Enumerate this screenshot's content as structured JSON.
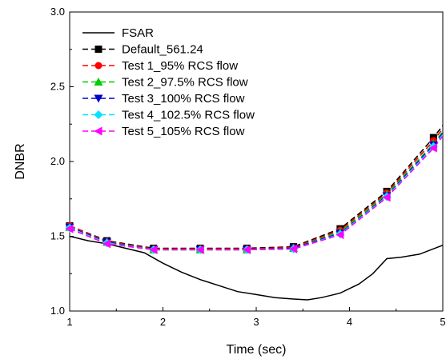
{
  "chart_data": {
    "type": "line",
    "xlabel": "Time (sec)",
    "ylabel": "DNBR",
    "xlim": [
      1,
      5
    ],
    "ylim": [
      1.0,
      3.0
    ],
    "xticks": [
      "1",
      "2",
      "3",
      "4",
      "5"
    ],
    "yticks": [
      "1.0",
      "1.5",
      "2.0",
      "2.5",
      "3.0"
    ],
    "grid": false,
    "legend_position": "top-left",
    "series": [
      {
        "name": "FSAR",
        "color": "#000000",
        "style": "solid",
        "marker": "none",
        "x": [
          1.0,
          1.2,
          1.4,
          1.6,
          1.8,
          2.0,
          2.2,
          2.4,
          2.6,
          2.8,
          3.0,
          3.2,
          3.4,
          3.55,
          3.7,
          3.9,
          4.1,
          4.25,
          4.4,
          4.55,
          4.75,
          5.0
        ],
        "y": [
          1.5,
          1.47,
          1.45,
          1.42,
          1.39,
          1.32,
          1.26,
          1.21,
          1.17,
          1.13,
          1.11,
          1.09,
          1.08,
          1.075,
          1.09,
          1.12,
          1.18,
          1.25,
          1.35,
          1.36,
          1.38,
          1.44
        ]
      },
      {
        "name": "Default_561.24",
        "color": "#000000",
        "style": "dashed",
        "marker": "square",
        "x": [
          1.0,
          1.4,
          1.9,
          2.4,
          2.9,
          3.4,
          3.9,
          4.4,
          4.9,
          5.0
        ],
        "y": [
          1.57,
          1.47,
          1.42,
          1.42,
          1.42,
          1.43,
          1.55,
          1.8,
          2.16,
          2.24
        ]
      },
      {
        "name": "Test 1_95% RCS flow",
        "color": "#ff0000",
        "style": "dashed",
        "marker": "circle",
        "x": [
          1.0,
          1.4,
          1.9,
          2.4,
          2.9,
          3.4,
          3.9,
          4.4,
          4.9,
          5.0
        ],
        "y": [
          1.57,
          1.465,
          1.415,
          1.415,
          1.415,
          1.425,
          1.54,
          1.79,
          2.14,
          2.22
        ]
      },
      {
        "name": "Test 2_97.5% RCS flow",
        "color": "#00cc00",
        "style": "dashed",
        "marker": "triangle-up",
        "x": [
          1.0,
          1.4,
          1.9,
          2.4,
          2.9,
          3.4,
          3.9,
          4.4,
          4.9,
          5.0
        ],
        "y": [
          1.56,
          1.46,
          1.41,
          1.41,
          1.41,
          1.42,
          1.53,
          1.78,
          2.12,
          2.2
        ]
      },
      {
        "name": "Test 3_100% RCS flow",
        "color": "#0000cc",
        "style": "dashed",
        "marker": "triangle-down",
        "x": [
          1.0,
          1.4,
          1.9,
          2.4,
          2.9,
          3.4,
          3.9,
          4.4,
          4.9,
          5.0
        ],
        "y": [
          1.56,
          1.46,
          1.41,
          1.41,
          1.41,
          1.42,
          1.52,
          1.77,
          2.11,
          2.19
        ]
      },
      {
        "name": "Test 4_102.5% RCS flow",
        "color": "#00e5ff",
        "style": "dashed",
        "marker": "diamond",
        "x": [
          1.0,
          1.4,
          1.9,
          2.4,
          2.9,
          3.4,
          3.9,
          4.4,
          4.9,
          5.0
        ],
        "y": [
          1.555,
          1.455,
          1.41,
          1.41,
          1.41,
          1.415,
          1.515,
          1.765,
          2.1,
          2.18
        ]
      },
      {
        "name": "Test 5_105% RCS flow",
        "color": "#ff00ff",
        "style": "dashed",
        "marker": "triangle-left",
        "x": [
          1.0,
          1.4,
          1.9,
          2.4,
          2.9,
          3.4,
          3.9,
          4.4,
          4.9,
          5.0
        ],
        "y": [
          1.55,
          1.45,
          1.41,
          1.41,
          1.41,
          1.415,
          1.51,
          1.76,
          2.09,
          2.17
        ]
      }
    ]
  }
}
